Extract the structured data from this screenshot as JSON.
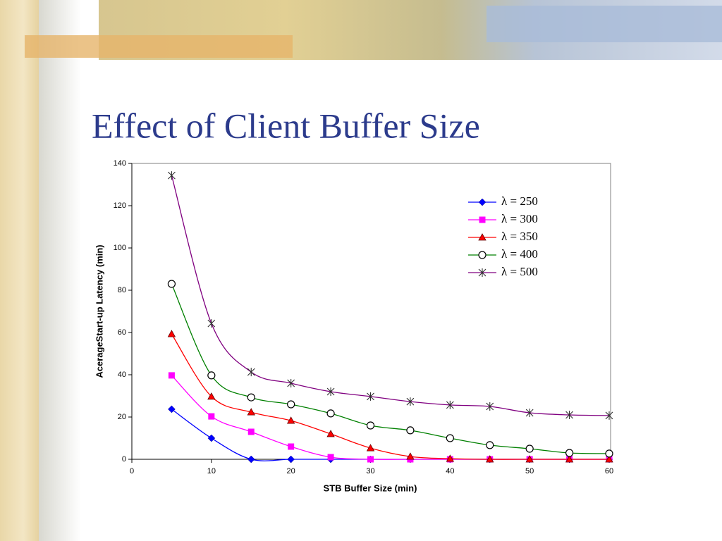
{
  "chart_data": {
    "type": "line",
    "title": "Effect of Client Buffer Size",
    "x_label": "STB Buffer Size (min)",
    "y_label": "AcerageStart-up Latency (min)",
    "x": [
      5,
      10,
      15,
      20,
      25,
      30,
      35,
      40,
      45,
      50,
      55,
      60
    ],
    "xlim": [
      0,
      60
    ],
    "xticks": [
      0,
      10,
      20,
      30,
      40,
      50,
      60
    ],
    "ylim": [
      0,
      140
    ],
    "yticks": [
      0,
      20,
      40,
      60,
      80,
      100,
      120,
      140
    ],
    "legend": "upper right",
    "series": [
      {
        "name": "λ = 250",
        "color": "#0000ff",
        "marker": "diamond",
        "values": [
          23.7,
          10,
          0,
          0,
          0,
          0,
          0,
          0,
          0,
          0,
          0,
          0
        ]
      },
      {
        "name": "λ = 300",
        "color": "#ff00ff",
        "marker": "square",
        "values": [
          39.7,
          20.3,
          13,
          6,
          1,
          0,
          0,
          0,
          0,
          0,
          0,
          0
        ]
      },
      {
        "name": "λ = 350",
        "color": "#ff0000",
        "marker": "triangle",
        "values": [
          59.3,
          29.7,
          22.3,
          18.3,
          12,
          5.3,
          1.3,
          0.3,
          0,
          0,
          0,
          0
        ]
      },
      {
        "name": "λ = 400",
        "color": "#008000",
        "marker": "circle",
        "values": [
          83,
          39.7,
          29.3,
          26,
          21.7,
          16,
          13.7,
          10,
          6.7,
          5,
          3,
          2.7
        ]
      },
      {
        "name": "λ = 500",
        "color": "#800080",
        "marker": "star",
        "values": [
          134.3,
          64.3,
          41.3,
          36,
          32,
          29.7,
          27.3,
          25.7,
          25,
          22,
          21,
          20.7
        ]
      }
    ]
  }
}
